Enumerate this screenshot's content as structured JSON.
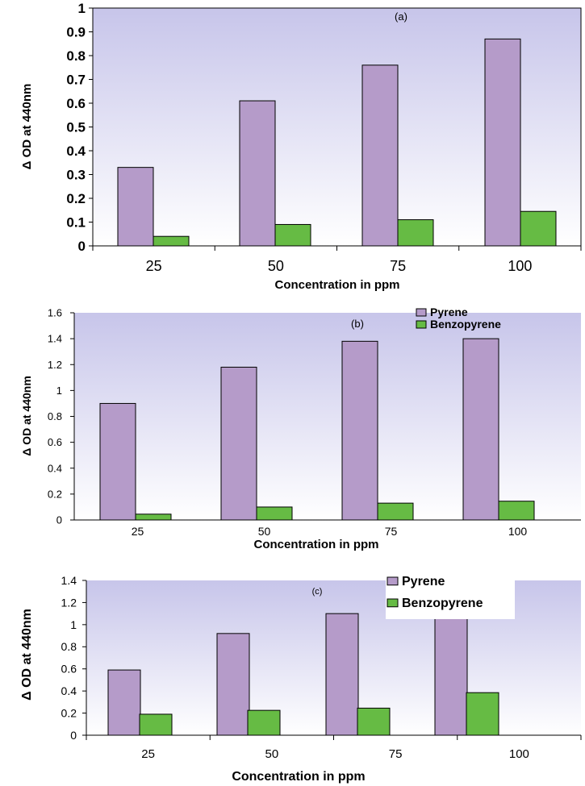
{
  "chart_data": [
    {
      "type": "bar",
      "panel_label": "(a)",
      "categories": [
        "25",
        "50",
        "75",
        "100"
      ],
      "series": [
        {
          "values": [
            0.33,
            0.61,
            0.76,
            0.87
          ],
          "color": "#b59bc9"
        },
        {
          "values": [
            0.04,
            0.09,
            0.11,
            0.145
          ],
          "color": "#66bb44"
        }
      ],
      "title": "",
      "xlabel": "Concentration in ppm",
      "ylabel": "Δ OD at 440nm",
      "ylim": [
        0,
        1
      ],
      "yticks": [
        "0",
        "0.1",
        "0.2",
        "0.3",
        "0.4",
        "0.5",
        "0.6",
        "0.7",
        "0.8",
        "0.9",
        "1"
      ],
      "legend": null,
      "plot_background": "lavender-gradient",
      "grid": false
    },
    {
      "type": "bar",
      "panel_label": "(b)",
      "categories": [
        "25",
        "50",
        "75",
        "100"
      ],
      "series": [
        {
          "name": "Pyrene",
          "values": [
            0.9,
            1.18,
            1.38,
            1.4
          ],
          "color": "#b59bc9"
        },
        {
          "name": "Benzopyrene",
          "values": [
            0.045,
            0.1,
            0.13,
            0.145
          ],
          "color": "#66bb44"
        }
      ],
      "title": "",
      "xlabel": "Concentration in ppm",
      "ylabel": "Δ OD at 440nm",
      "ylim": [
        0,
        1.6
      ],
      "yticks": [
        "0",
        "0.2",
        "0.4",
        "0.6",
        "0.8",
        "1",
        "1.2",
        "1.4",
        "1.6"
      ],
      "legend": "top-right",
      "plot_background": "lavender-gradient",
      "grid": false
    },
    {
      "type": "bar",
      "panel_label": "(c)",
      "categories": [
        "25",
        "50",
        "75",
        "100"
      ],
      "series": [
        {
          "name": "Pyrene",
          "values": [
            0.59,
            0.92,
            1.1,
            1.15
          ],
          "color": "#b59bc9"
        },
        {
          "name": "Benzopyrene",
          "values": [
            0.19,
            0.225,
            0.245,
            0.385
          ],
          "color": "#66bb44"
        }
      ],
      "title": "",
      "xlabel": "Concentration in ppm",
      "ylabel": "Δ OD at 440nm",
      "ylim": [
        0,
        1.4
      ],
      "yticks": [
        "0",
        "0.2",
        "0.4",
        "0.6",
        "0.8",
        "1",
        "1.2",
        "1.4"
      ],
      "legend": "top-right",
      "plot_background": "lavender-gradient",
      "grid": false
    }
  ]
}
